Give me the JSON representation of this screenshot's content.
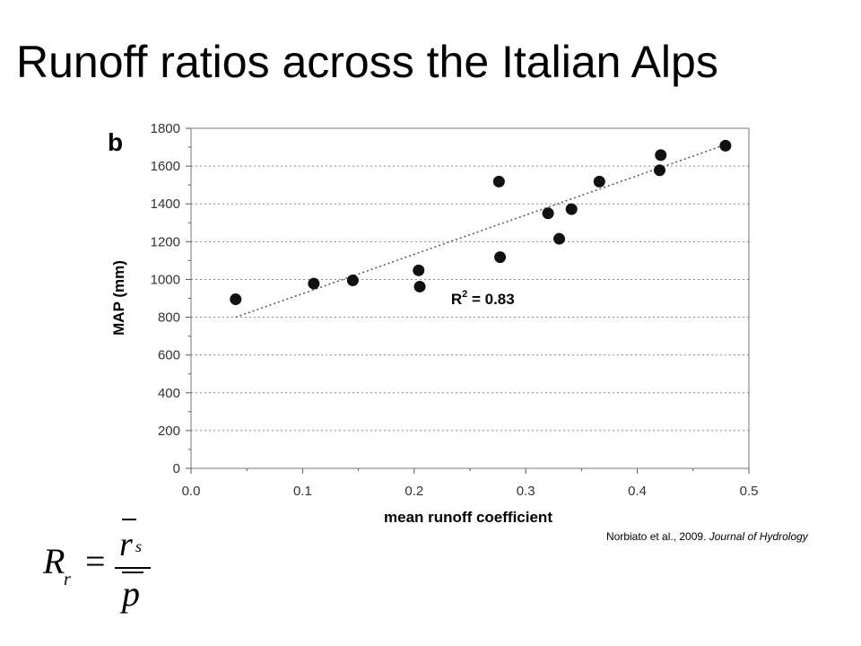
{
  "slide": {
    "title": "Runoff ratios across the Italian Alps",
    "citation_authors": "Norbiato et al., 2009. ",
    "citation_journal": "Journal of Hydrology"
  },
  "formula": {
    "lhs": "R",
    "lhs_sub": "r",
    "equals": "=",
    "numerator": "r",
    "numerator_sub": "s",
    "denominator": "p"
  },
  "chart_data": {
    "type": "scatter",
    "panel_label": "b",
    "xlabel": "mean runoff coefficient",
    "ylabel": "MAP (mm)",
    "xlim": [
      0.0,
      0.5
    ],
    "ylim": [
      0,
      1800
    ],
    "x_ticks": [
      0.0,
      0.1,
      0.2,
      0.3,
      0.4,
      0.5
    ],
    "x_tick_labels": [
      "0.0",
      "0.1",
      "0.2",
      "0.3",
      "0.4",
      "0.5"
    ],
    "y_ticks": [
      0,
      200,
      400,
      600,
      800,
      1000,
      1200,
      1400,
      1600,
      1800
    ],
    "y_tick_labels": [
      "0",
      "200",
      "400",
      "600",
      "800",
      "1000",
      "1200",
      "1400",
      "1600",
      "1800"
    ],
    "grid": "horizontal dotted",
    "points": [
      {
        "x": 0.04,
        "y": 895
      },
      {
        "x": 0.11,
        "y": 978
      },
      {
        "x": 0.145,
        "y": 995
      },
      {
        "x": 0.204,
        "y": 1048
      },
      {
        "x": 0.205,
        "y": 962
      },
      {
        "x": 0.276,
        "y": 1518
      },
      {
        "x": 0.277,
        "y": 1118
      },
      {
        "x": 0.32,
        "y": 1350
      },
      {
        "x": 0.33,
        "y": 1215
      },
      {
        "x": 0.341,
        "y": 1372
      },
      {
        "x": 0.366,
        "y": 1518
      },
      {
        "x": 0.421,
        "y": 1658
      },
      {
        "x": 0.42,
        "y": 1578
      },
      {
        "x": 0.479,
        "y": 1708
      }
    ],
    "trendline": [
      {
        "x": 0.04,
        "y": 800
      },
      {
        "x": 0.475,
        "y": 1705
      }
    ],
    "annotation": {
      "prefix": "R",
      "superscript": "2",
      "suffix": " = 0.83",
      "x": 0.233,
      "y": 870
    }
  }
}
